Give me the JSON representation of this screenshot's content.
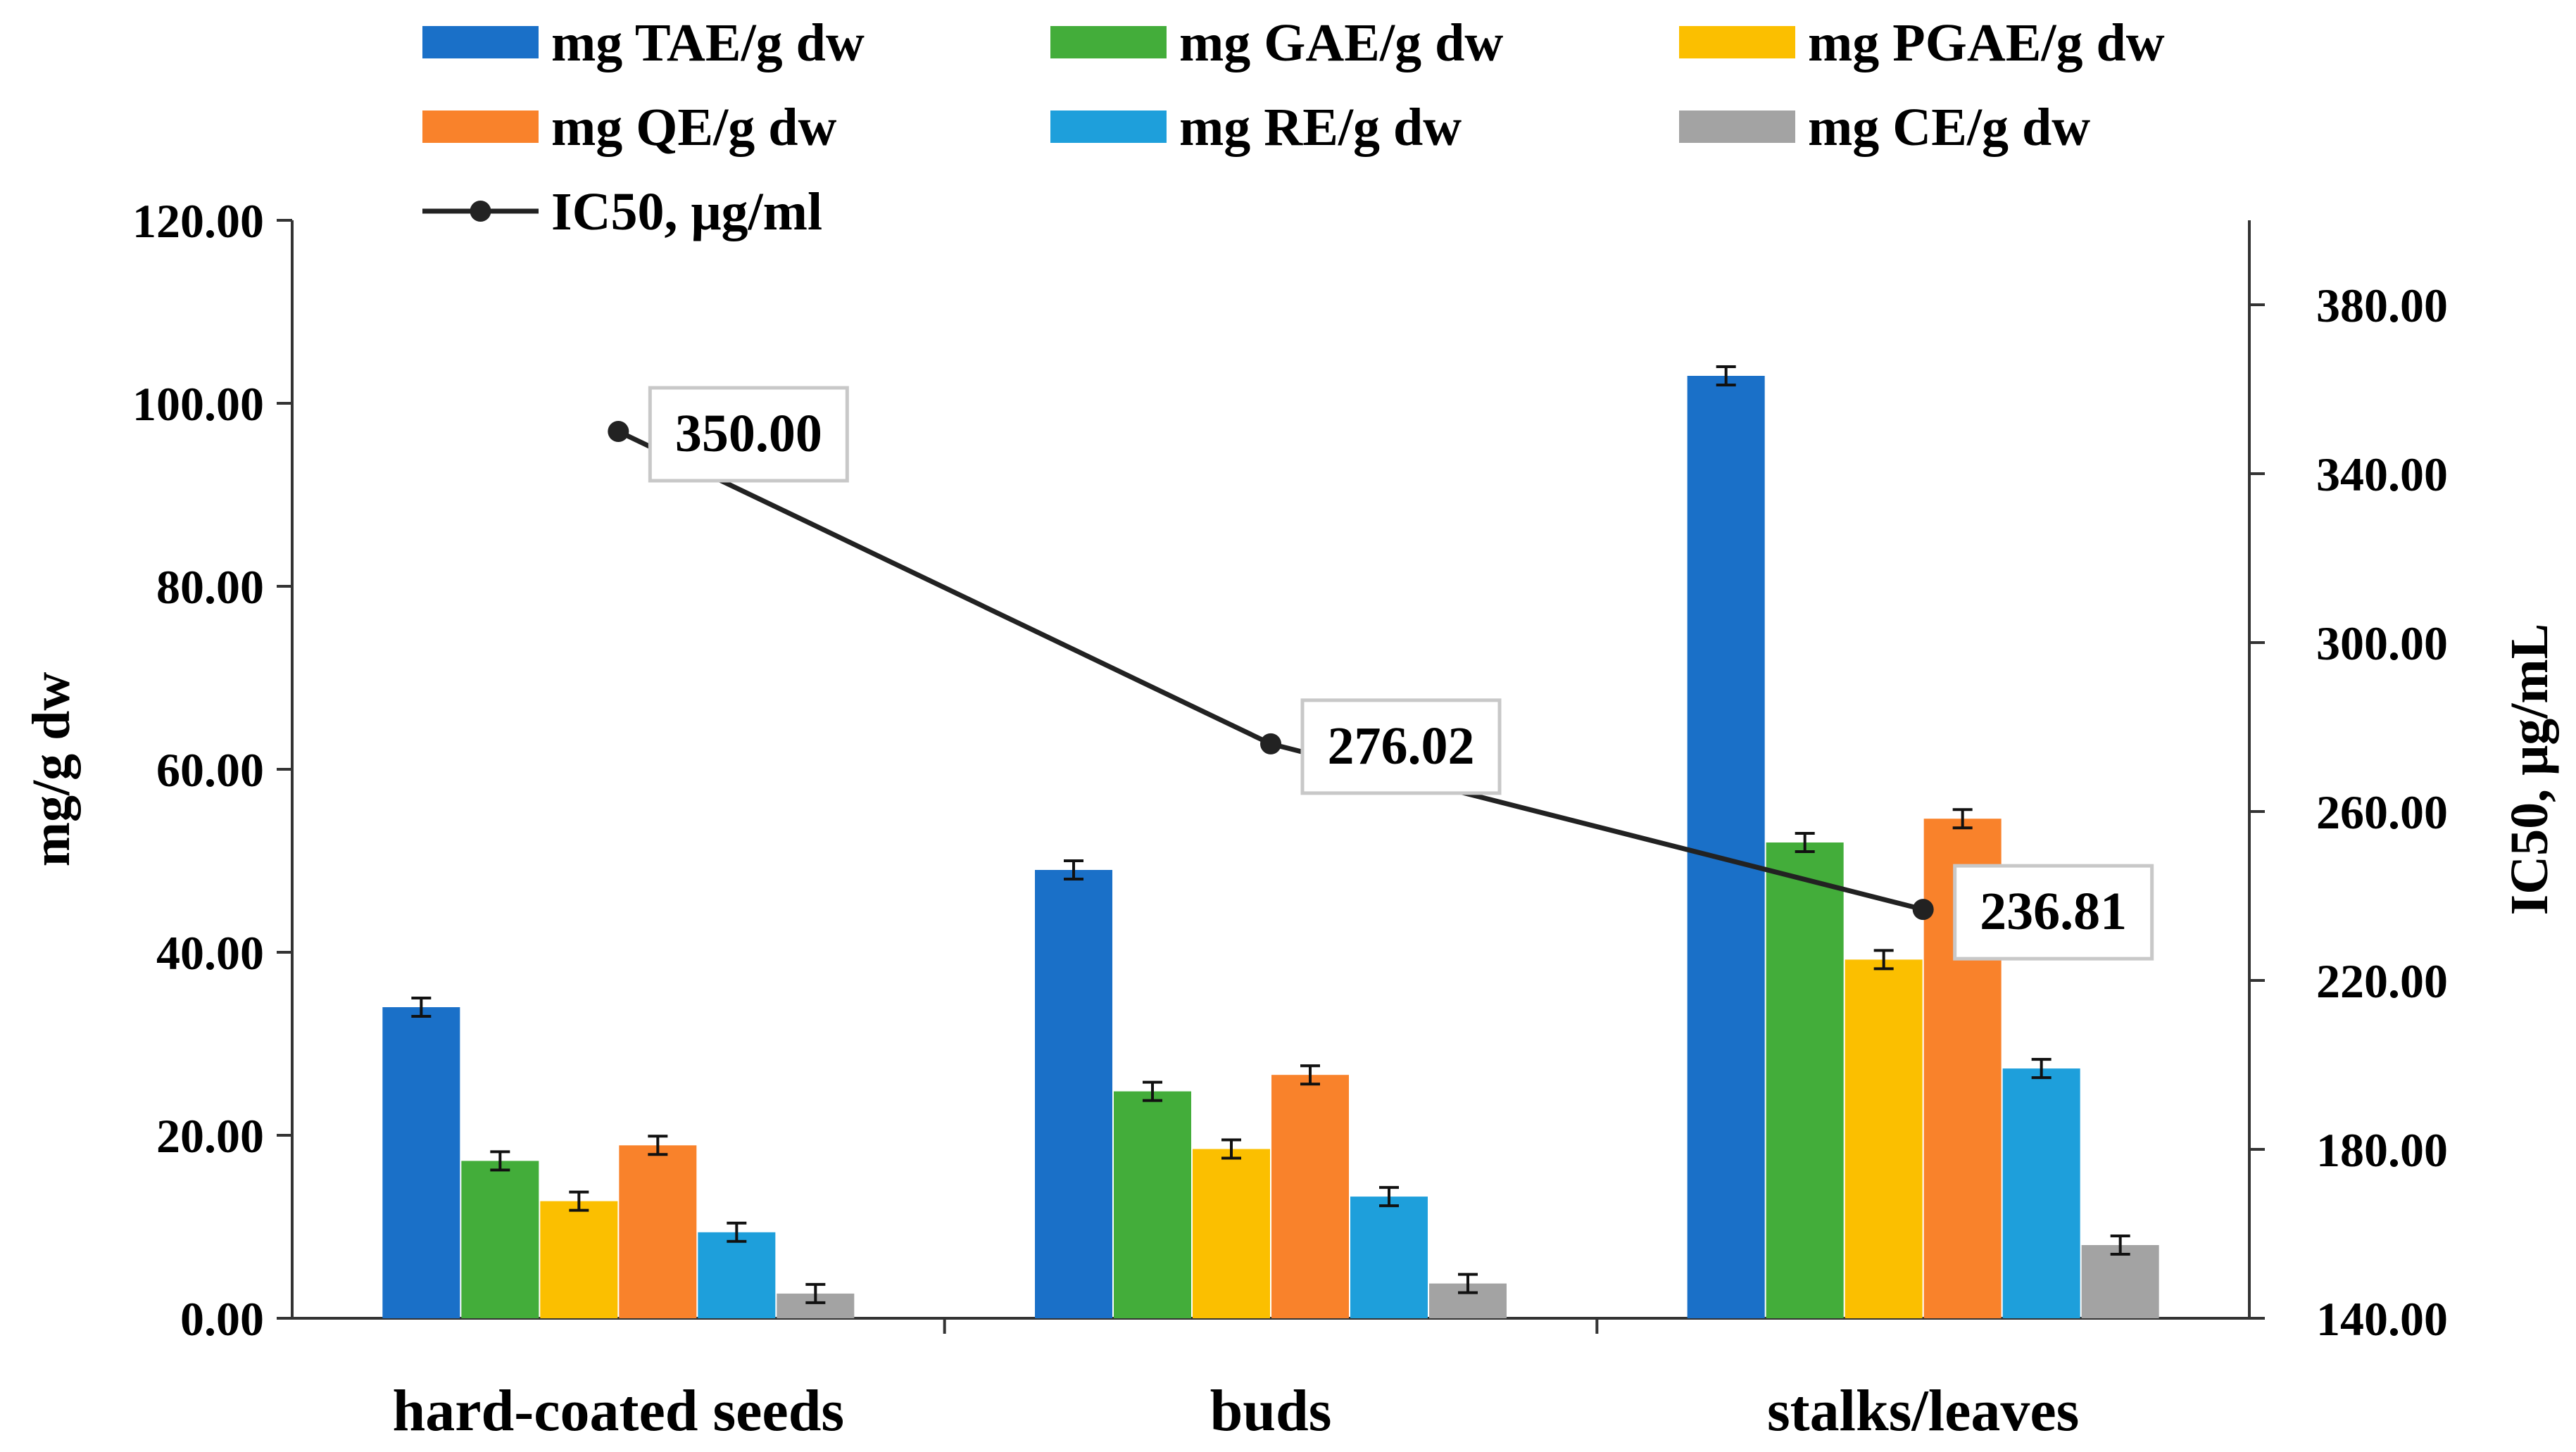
{
  "chart_data": {
    "type": "bar",
    "title": "",
    "xlabel": "",
    "ylabel": "mg/g dw",
    "y2label": "IC50, μg/mL",
    "ylim": [
      0,
      120
    ],
    "y2lim": [
      140,
      400
    ],
    "yticks": [
      "0.00",
      "20.00",
      "40.00",
      "60.00",
      "80.00",
      "100.00",
      "120.00"
    ],
    "y2ticks": [
      "140.00",
      "180.00",
      "220.00",
      "260.00",
      "300.00",
      "340.00",
      "380.00"
    ],
    "categories": [
      "hard-coated seeds",
      "buds",
      "stalks/leaves"
    ],
    "legend_position": "top",
    "series": [
      {
        "name": "mg TAE/g  dw",
        "color": "#1a70c8",
        "values": [
          34.0,
          49.0,
          103.0
        ],
        "errors": [
          1.0,
          1.0,
          1.0
        ]
      },
      {
        "name": "mg GAE/g  dw",
        "color": "#43ad3a",
        "values": [
          17.2,
          24.8,
          52.0
        ],
        "errors": [
          1.0,
          1.0,
          1.0
        ]
      },
      {
        "name": "mg PGAE/g  dw",
        "color": "#fbbf00",
        "values": [
          12.8,
          18.5,
          39.2
        ],
        "errors": [
          1.0,
          1.0,
          1.0
        ]
      },
      {
        "name": "mg QE/g  dw",
        "color": "#f9822b",
        "values": [
          18.9,
          26.6,
          54.6
        ],
        "errors": [
          1.0,
          1.0,
          1.0
        ]
      },
      {
        "name": "mg RE/g  dw",
        "color": "#1e9fdb",
        "values": [
          9.4,
          13.3,
          27.3
        ],
        "errors": [
          1.0,
          1.0,
          1.0
        ]
      },
      {
        "name": "mg CE/g dw",
        "color": "#a3a3a3",
        "values": [
          2.7,
          3.8,
          8.0
        ],
        "errors": [
          1.0,
          1.0,
          1.0
        ]
      }
    ],
    "line_series": {
      "name": "IC50, μg/ml",
      "color": "#222222",
      "axis": "secondary",
      "values": [
        350.0,
        276.02,
        236.81
      ],
      "labels": [
        "350.00",
        "276.02",
        "236.81"
      ]
    }
  }
}
